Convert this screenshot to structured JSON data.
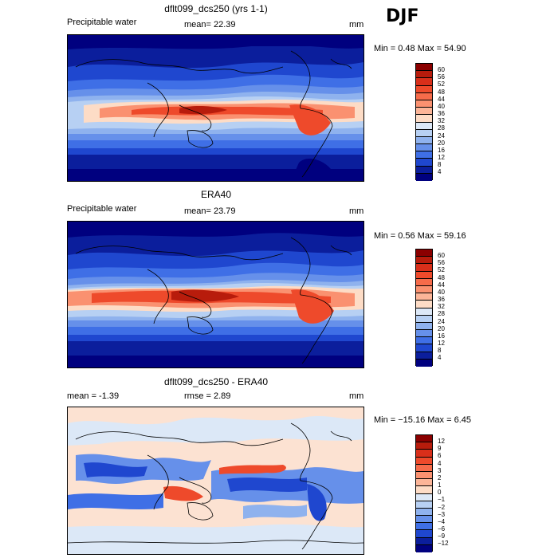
{
  "season": "DJF",
  "panels": [
    {
      "title": "dflt099_dcs250 (yrs 1-1)",
      "left_label": "Precipitable water",
      "mid_label": "mean=  22.39",
      "units": "mm",
      "minmax": "Min =   0.48  Max =  54.90",
      "levels": [
        "60",
        "56",
        "52",
        "48",
        "44",
        "40",
        "36",
        "32",
        "28",
        "24",
        "20",
        "16",
        "12",
        "8",
        "4"
      ],
      "colors": [
        "#8b0000",
        "#b81c0c",
        "#d92f1a",
        "#ee4a2b",
        "#f66b4a",
        "#fa9170",
        "#fcb598",
        "#fddcc6",
        "#dce8f7",
        "#b7d0f3",
        "#8fb2ee",
        "#6690ea",
        "#3f6fe6",
        "#1f47cf",
        "#0b1e9c",
        "#00007f"
      ]
    },
    {
      "title": "ERA40",
      "left_label": "Precipitable water",
      "mid_label": "mean=  23.79",
      "units": "mm",
      "minmax": "Min =   0.56  Max =  59.16",
      "levels": [
        "60",
        "56",
        "52",
        "48",
        "44",
        "40",
        "36",
        "32",
        "28",
        "24",
        "20",
        "16",
        "12",
        "8",
        "4"
      ],
      "colors": [
        "#8b0000",
        "#b81c0c",
        "#d92f1a",
        "#ee4a2b",
        "#f66b4a",
        "#fa9170",
        "#fcb598",
        "#fddcc6",
        "#dce8f7",
        "#b7d0f3",
        "#8fb2ee",
        "#6690ea",
        "#3f6fe6",
        "#1f47cf",
        "#0b1e9c",
        "#00007f"
      ]
    },
    {
      "title": "dflt099_dcs250 - ERA40",
      "left_label": "mean =   -1.39",
      "mid_label": "rmse =    2.89",
      "units": "mm",
      "minmax": "Min = −15.16  Max =    6.45",
      "levels": [
        "12",
        "9",
        "6",
        "4",
        "3",
        "2",
        "1",
        "0",
        "−1",
        "−2",
        "−3",
        "−4",
        "−6",
        "−9",
        "−12"
      ],
      "colors": [
        "#8b0000",
        "#b81c0c",
        "#d92f1a",
        "#ee4a2b",
        "#f66b4a",
        "#fa9170",
        "#fcb598",
        "#fddcc6",
        "#dce8f7",
        "#b7d0f3",
        "#8fb2ee",
        "#6690ea",
        "#3f6fe6",
        "#1f47cf",
        "#0b1e9c",
        "#00007f"
      ]
    }
  ]
}
